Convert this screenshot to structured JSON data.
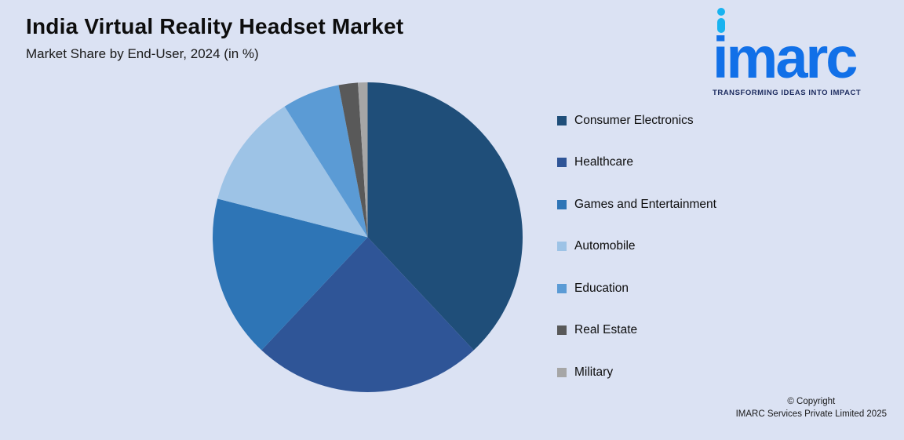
{
  "background": "#dbe2f3",
  "header": {
    "title": "India Virtual Reality Headset Market",
    "subtitle": "Market Share by End-User, 2024 (in %)"
  },
  "logo": {
    "wordmark": "imarc",
    "tagline": "TRANSFORMING IDEAS INTO IMPACT",
    "brand_blue": "#1170e8",
    "brand_cyan": "#19b3f0"
  },
  "footer": {
    "copyright_line1": "© Copyright",
    "copyright_line2": "IMARC Services Private Limited 2025"
  },
  "chart_data": {
    "type": "pie",
    "title": "India Virtual Reality Headset Market",
    "subtitle": "Market Share by End-User, 2024 (in %)",
    "categories": [
      "Consumer Electronics",
      "Healthcare",
      "Games and Entertainment",
      "Automobile",
      "Education",
      "Real Estate",
      "Military"
    ],
    "values": [
      38,
      24,
      17,
      12,
      6,
      2,
      1
    ],
    "colors": [
      "#1f4e79",
      "#2f5597",
      "#2e75b6",
      "#9dc3e6",
      "#5b9bd5",
      "#595959",
      "#a6a6a6"
    ],
    "legend_position": "right",
    "start_angle_deg": 0,
    "direction": "clockwise",
    "data_labels": "none"
  }
}
